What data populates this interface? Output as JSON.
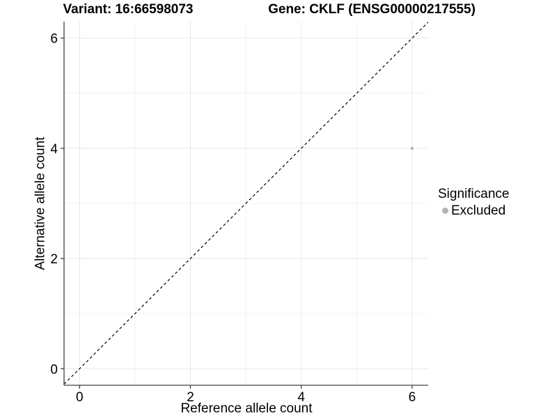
{
  "chart_data": {
    "type": "scatter",
    "title_left": "Variant: 16:66598073",
    "title_right": "Gene: CKLF (ENSG00000217555)",
    "xlabel": "Reference allele count",
    "ylabel": "Alternative allele count",
    "xlim": [
      -0.28,
      6.29
    ],
    "ylim": [
      -0.3,
      6.3
    ],
    "xticks": [
      0,
      2,
      4,
      6
    ],
    "yticks": [
      0,
      2,
      4,
      6
    ],
    "xticks_minor": [
      1,
      3,
      5
    ],
    "yticks_minor": [
      1,
      3,
      5
    ],
    "grid": true,
    "points": [
      {
        "x": 6,
        "y": 4,
        "series": "Excluded",
        "color": "#b5b5b5"
      }
    ],
    "reference_line": {
      "slope": 1,
      "intercept": 0,
      "style": "dashed",
      "color": "#000000"
    },
    "legend": {
      "title": "Significance",
      "position": "right",
      "entries": [
        {
          "label": "Excluded",
          "color": "#b5b5b5"
        }
      ]
    },
    "colors": {
      "grid_major": "#e7e7e7",
      "grid_minor": "#f1f1f1",
      "axis_line": "#404040",
      "tick": "#333333",
      "point": "#b5b5b5",
      "background": "#ffffff"
    }
  }
}
